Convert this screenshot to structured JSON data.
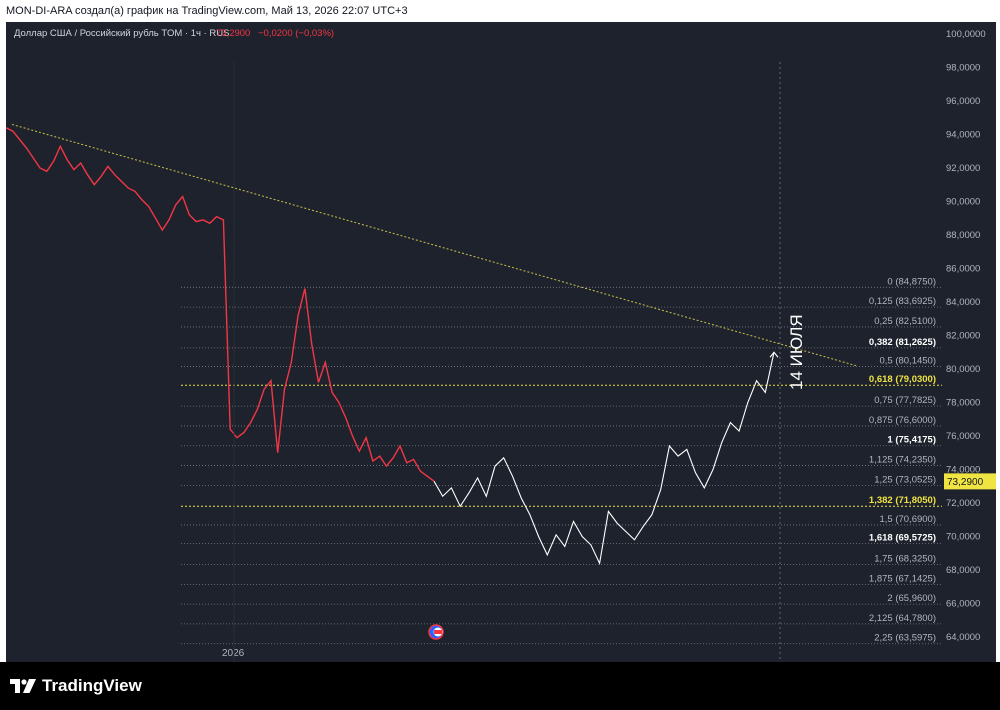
{
  "header": {
    "caption": "MON-DI-ARA создал(а) график на TradingView.com, Май 13, 2026 22:07 UTC+3"
  },
  "legend": {
    "symbol": "Доллар США / Российский рубль TOM · 1ч · RUS",
    "price": "73,2900",
    "change": "−0,0200 (−0,03%)"
  },
  "annotation": {
    "text": "14 ИЮЛЯ"
  },
  "last_price_label": "73,2900",
  "footer": {
    "brand": "TradingView"
  },
  "colors": {
    "background": "#1e222d",
    "history": "#f23645",
    "forecast": "#ffffff",
    "fib_line": "#787b86",
    "fib_highlight": "#f0e442",
    "trend": "#c9c34a"
  },
  "chart_data": {
    "type": "line",
    "xlabel": "",
    "ylabel": "",
    "x_tick_labels": [
      "2026"
    ],
    "y_ticks": [
      "100,0000",
      "98,0000",
      "96,0000",
      "94,0000",
      "92,0000",
      "90,0000",
      "88,0000",
      "86,0000",
      "84,0000",
      "82,0000",
      "80,0000",
      "78,0000",
      "76,0000",
      "74,0000",
      "72,0000",
      "70,0000",
      "68,0000",
      "66,0000",
      "64,0000"
    ],
    "ylim": [
      64,
      101
    ],
    "grid": false,
    "series": [
      {
        "kind": "history",
        "values": [
          94.4,
          94.2,
          93.7,
          93.2,
          92.6,
          92.0,
          91.8,
          92.4,
          93.3,
          92.5,
          91.9,
          92.3,
          91.6,
          91.0,
          91.5,
          92.1,
          91.6,
          91.2,
          90.8,
          90.6,
          90.1,
          89.7,
          89.0,
          88.3,
          88.9,
          89.8,
          90.3,
          89.2,
          88.8,
          88.9,
          88.7,
          89.1,
          88.9,
          76.4,
          75.9,
          76.2,
          76.8,
          77.6,
          78.8,
          79.3,
          75.0,
          78.8,
          80.4,
          83.2,
          84.8,
          81.5,
          79.2,
          80.4,
          78.6,
          78.0,
          77.1,
          76.0,
          75.1,
          75.9,
          74.5,
          74.8,
          74.2,
          74.7,
          75.4,
          74.4,
          74.6,
          73.9,
          73.6,
          73.3
        ]
      },
      {
        "kind": "forecast",
        "values": [
          73.3,
          72.4,
          72.9,
          71.8,
          72.6,
          73.5,
          72.4,
          74.2,
          74.7,
          73.6,
          72.3,
          71.3,
          70.0,
          68.9,
          70.1,
          69.4,
          70.9,
          70.0,
          69.5,
          68.4,
          71.5,
          70.8,
          70.3,
          69.8,
          70.6,
          71.3,
          72.8,
          75.4,
          74.8,
          75.2,
          73.8,
          72.9,
          74.0,
          75.6,
          76.8,
          76.3,
          78.0,
          79.3,
          78.6,
          81.0
        ]
      }
    ],
    "fibonacci": [
      {
        "level": "0",
        "price": 84.875
      },
      {
        "level": "0,125",
        "price": 83.6925
      },
      {
        "level": "0,25",
        "price": 82.51
      },
      {
        "level": "0,382",
        "price": 81.2625
      },
      {
        "level": "0,5",
        "price": 80.145
      },
      {
        "level": "0,618",
        "price": 79.03
      },
      {
        "level": "0,75",
        "price": 77.7825
      },
      {
        "level": "0,875",
        "price": 76.6
      },
      {
        "level": "1",
        "price": 75.4175
      },
      {
        "level": "1,125",
        "price": 74.235
      },
      {
        "level": "1,25",
        "price": 73.0525
      },
      {
        "level": "1,382",
        "price": 71.805
      },
      {
        "level": "1,5",
        "price": 70.69
      },
      {
        "level": "1,618",
        "price": 69.5725
      },
      {
        "level": "1,75",
        "price": 68.325
      },
      {
        "level": "1,875",
        "price": 67.1425
      },
      {
        "level": "2",
        "price": 65.96
      },
      {
        "level": "2,125",
        "price": 64.78
      },
      {
        "level": "2,25",
        "price": 63.5975
      }
    ],
    "fibonacci_labels": [
      "0 (84,8750)",
      "0,125 (83,6925)",
      "0,25 (82,5100)",
      "0,382 (81,2625)",
      "0,5 (80,1450)",
      "0,618 (79,0300)",
      "0,75 (77,7825)",
      "0,875 (76,6000)",
      "1 (75,4175)",
      "1,125 (74,2350)",
      "1,25 (73,0525)",
      "1,382 (71,8050)",
      "1,5 (70,6900)",
      "1,618 (69,5725)",
      "1,75 (68,3250)",
      "1,875 (67,1425)",
      "2 (65,9600)",
      "2,125 (64,7800)",
      "2,25 (63,5975)"
    ],
    "fib_highlight_levels": [
      "0,618",
      "1,382"
    ],
    "fib_bold_levels": [
      "0,382",
      "1",
      "1,618"
    ],
    "trendline": {
      "from": 94.6,
      "to": 80.2
    }
  }
}
